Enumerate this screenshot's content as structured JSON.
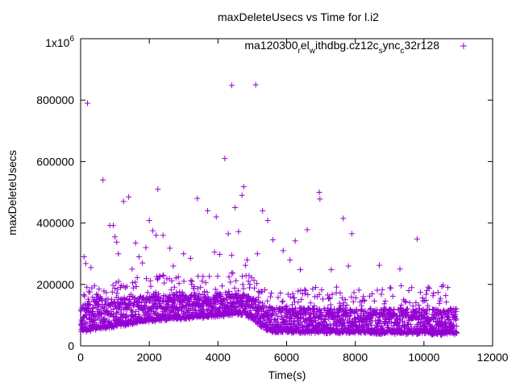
{
  "chart_data": {
    "type": "scatter",
    "title": "maxDeleteUsecs vs Time for l.i2",
    "xlabel": "Time(s)",
    "ylabel": "maxDeleteUsecs",
    "xlim": [
      0,
      12000
    ],
    "ylim": [
      0,
      1000000
    ],
    "x_ticks": [
      {
        "value": 0,
        "label": "0"
      },
      {
        "value": 2000,
        "label": "2000"
      },
      {
        "value": 4000,
        "label": "4000"
      },
      {
        "value": 6000,
        "label": "6000"
      },
      {
        "value": 8000,
        "label": "8000"
      },
      {
        "value": 10000,
        "label": "10000"
      },
      {
        "value": 12000,
        "label": "12000"
      }
    ],
    "y_ticks": [
      {
        "value": 0,
        "label": "0"
      },
      {
        "value": 200000,
        "label": "200000"
      },
      {
        "value": 400000,
        "label": "400000"
      },
      {
        "value": 600000,
        "label": "600000"
      },
      {
        "value": 800000,
        "label": "800000"
      }
    ],
    "y_top_label": {
      "value": 1000000,
      "mantissa": "1x10",
      "exponent": "6"
    },
    "legend": {
      "position": "top-right",
      "parts": [
        {
          "text": "ma120300",
          "shift": "none"
        },
        {
          "text": "r",
          "shift": "sub"
        },
        {
          "text": "el",
          "shift": "none"
        },
        {
          "text": "w",
          "shift": "sub"
        },
        {
          "text": "ithdbg.cz12c",
          "shift": "none"
        },
        {
          "text": "s",
          "shift": "sub"
        },
        {
          "text": "ync",
          "shift": "none"
        },
        {
          "text": "c",
          "shift": "sub"
        },
        {
          "text": "32r128",
          "shift": "none"
        }
      ]
    },
    "series": [
      {
        "name": "ma120300_rel_withdbg.cz12c_sync_c32r128",
        "color": "#9400d3",
        "marker": "plus",
        "points": [
          [
            200,
            790000
          ],
          [
            650,
            540000
          ],
          [
            4200,
            610000
          ],
          [
            4400,
            848000
          ],
          [
            5100,
            850000
          ],
          [
            2250,
            510000
          ],
          [
            4750,
            518000
          ],
          [
            6950,
            500000
          ],
          [
            6970,
            478000
          ],
          [
            1400,
            485000
          ],
          [
            1250,
            470000
          ],
          [
            3400,
            480000
          ],
          [
            4700,
            490000
          ],
          [
            4500,
            450000
          ],
          [
            3700,
            440000
          ],
          [
            5300,
            440000
          ],
          [
            7650,
            415000
          ],
          [
            2000,
            408000
          ],
          [
            3950,
            420000
          ],
          [
            5450,
            408000
          ],
          [
            850,
            392000
          ],
          [
            950,
            392000
          ],
          [
            1000,
            355000
          ],
          [
            1050,
            338000
          ],
          [
            2100,
            375000
          ],
          [
            2400,
            360000
          ],
          [
            2200,
            360000
          ],
          [
            4300,
            365000
          ],
          [
            4600,
            372000
          ],
          [
            5600,
            345000
          ],
          [
            6250,
            342000
          ],
          [
            6600,
            378000
          ],
          [
            7900,
            365000
          ],
          [
            9800,
            348000
          ],
          [
            1600,
            335000
          ],
          [
            1100,
            300000
          ],
          [
            3000,
            300000
          ],
          [
            3200,
            285000
          ],
          [
            4050,
            298000
          ],
          [
            4400,
            295000
          ],
          [
            5900,
            310000
          ],
          [
            6100,
            280000
          ],
          [
            4850,
            280000
          ],
          [
            100,
            290000
          ],
          [
            1700,
            290000
          ],
          [
            3900,
            305000
          ],
          [
            5150,
            300000
          ],
          [
            1900,
            320000
          ],
          [
            2600,
            318000
          ],
          [
            150,
            268000
          ],
          [
            300,
            255000
          ],
          [
            1800,
            270000
          ],
          [
            2700,
            260000
          ],
          [
            4800,
            262000
          ],
          [
            7300,
            248000
          ],
          [
            7800,
            260000
          ],
          [
            8700,
            262000
          ],
          [
            9300,
            250000
          ],
          [
            1500,
            250000
          ],
          [
            6400,
            248000
          ]
        ],
        "cloud": {
          "x_range": [
            0,
            10950
          ],
          "lower_band": [
            [
              0,
              50000
            ],
            [
              2000,
              85000
            ],
            [
              4750,
              108000
            ],
            [
              5500,
              50000
            ],
            [
              10900,
              42000
            ]
          ],
          "upper_band": [
            [
              0,
              150000
            ],
            [
              2000,
              165000
            ],
            [
              4750,
              170000
            ],
            [
              5600,
              125000
            ],
            [
              10900,
              120000
            ]
          ],
          "noise_top": [
            [
              0,
              190000
            ],
            [
              2000,
              230000
            ],
            [
              4750,
              240000
            ],
            [
              5600,
              190000
            ],
            [
              10900,
              200000
            ]
          ]
        }
      }
    ]
  }
}
